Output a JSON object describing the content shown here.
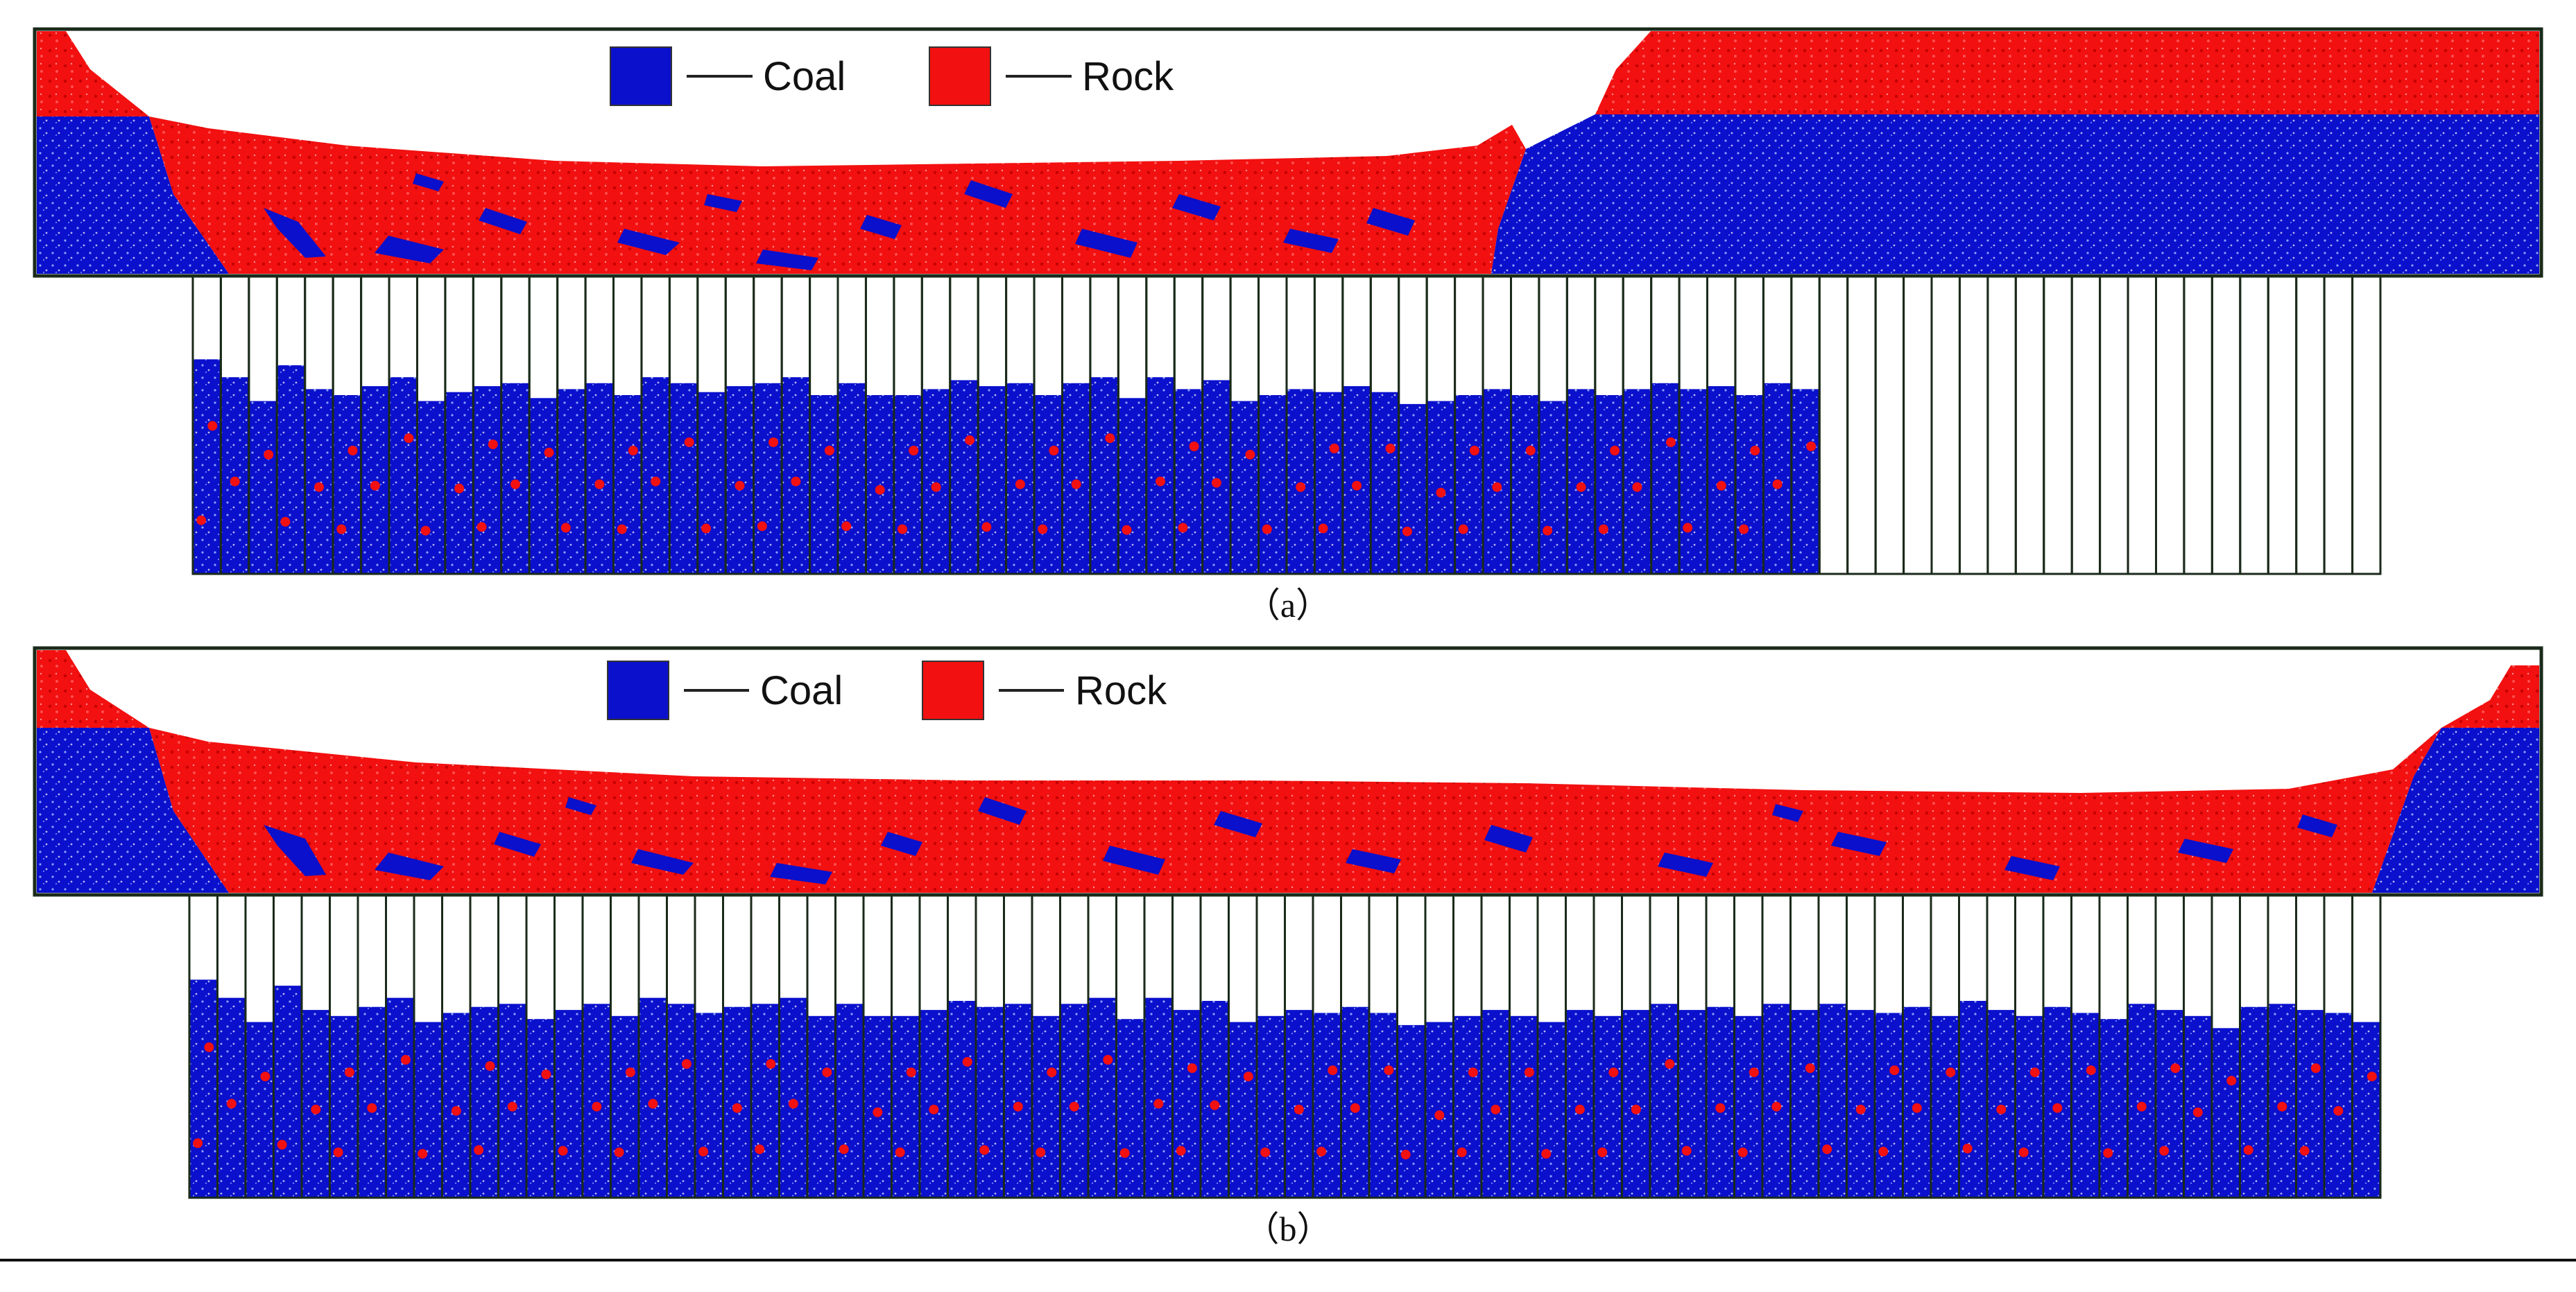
{
  "legend": {
    "coal_label": "Coal",
    "rock_label": "Rock",
    "coal_color": "#0a10cc",
    "rock_color": "#f21010"
  },
  "colors": {
    "coal": "#0a10cc",
    "rock": "#f21010",
    "frame": "#1a2a1a",
    "background": "#ffffff"
  },
  "panels": [
    {
      "id": "a",
      "caption": "（a）",
      "legend_variant": "a",
      "bins_total": 78,
      "bins_filled": 58,
      "bin_fill_fraction": [
        0.72,
        0.66,
        0.58,
        0.7,
        0.62,
        0.6,
        0.63,
        0.66,
        0.58,
        0.61,
        0.63,
        0.64,
        0.59,
        0.62,
        0.64,
        0.6,
        0.66,
        0.64,
        0.61,
        0.63,
        0.64,
        0.66,
        0.6,
        0.64,
        0.6,
        0.6,
        0.62,
        0.65,
        0.63,
        0.64,
        0.6,
        0.64,
        0.66,
        0.59,
        0.66,
        0.62,
        0.65,
        0.58,
        0.6,
        0.62,
        0.61,
        0.63,
        0.61,
        0.57,
        0.58,
        0.6,
        0.62,
        0.6,
        0.58,
        0.62,
        0.6,
        0.62,
        0.64,
        0.62,
        0.63,
        0.6,
        0.64,
        0.62
      ]
    },
    {
      "id": "b",
      "caption": "（b）",
      "legend_variant": "b",
      "bins_total": 78,
      "bins_filled": 78,
      "bin_fill_fraction": [
        0.72,
        0.66,
        0.58,
        0.7,
        0.62,
        0.6,
        0.63,
        0.66,
        0.58,
        0.61,
        0.63,
        0.64,
        0.59,
        0.62,
        0.64,
        0.6,
        0.66,
        0.64,
        0.61,
        0.63,
        0.64,
        0.66,
        0.6,
        0.64,
        0.6,
        0.6,
        0.62,
        0.65,
        0.63,
        0.64,
        0.6,
        0.64,
        0.66,
        0.59,
        0.66,
        0.62,
        0.65,
        0.58,
        0.6,
        0.62,
        0.61,
        0.63,
        0.61,
        0.57,
        0.58,
        0.6,
        0.62,
        0.6,
        0.58,
        0.62,
        0.6,
        0.62,
        0.64,
        0.62,
        0.63,
        0.6,
        0.64,
        0.62,
        0.64,
        0.62,
        0.61,
        0.63,
        0.6,
        0.65,
        0.62,
        0.6,
        0.63,
        0.61,
        0.59,
        0.64,
        0.62,
        0.6,
        0.56,
        0.63,
        0.64,
        0.62,
        0.61,
        0.58
      ]
    }
  ]
}
